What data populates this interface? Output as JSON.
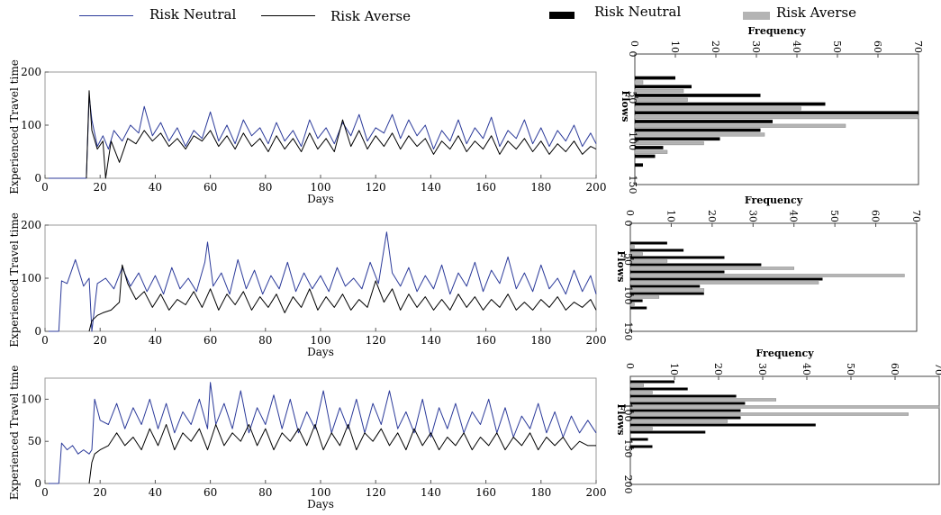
{
  "legend_left": {
    "items": [
      {
        "label": "Risk Neutral",
        "color": "#2b3a9a"
      },
      {
        "label": "Risk Averse",
        "color": "#000000"
      }
    ]
  },
  "legend_right": {
    "items": [
      {
        "label": "Risk Neutral",
        "color": "#000000"
      },
      {
        "label": "Risk Averse",
        "color": "#b4b4b4"
      }
    ]
  },
  "chart_data": [
    {
      "type": "line",
      "panel": "top",
      "xlabel": "Days",
      "ylabel": "Experienced Travel time",
      "xlim": [
        0,
        200
      ],
      "ylim": [
        0,
        200
      ],
      "xticks": [
        0,
        20,
        40,
        60,
        80,
        100,
        120,
        140,
        160,
        180,
        200
      ],
      "yticks": [
        0,
        100,
        200
      ],
      "series": [
        {
          "name": "Risk Neutral",
          "color": "#2b3a9a",
          "x": [
            15,
            16,
            17,
            19,
            21,
            23,
            25,
            28,
            31,
            34,
            36,
            39,
            42,
            45,
            48,
            51,
            54,
            57,
            60,
            63,
            66,
            69,
            72,
            75,
            78,
            81,
            84,
            87,
            90,
            93,
            96,
            99,
            102,
            105,
            108,
            111,
            114,
            117,
            120,
            123,
            126,
            129,
            132,
            135,
            138,
            141,
            144,
            147,
            150,
            153,
            156,
            159,
            162,
            165,
            168,
            171,
            174,
            177,
            180,
            183,
            186,
            189,
            192,
            195,
            198,
            200
          ],
          "y": [
            0,
            155,
            110,
            60,
            80,
            55,
            90,
            70,
            100,
            85,
            135,
            80,
            105,
            70,
            95,
            60,
            90,
            75,
            125,
            70,
            100,
            65,
            110,
            80,
            95,
            65,
            105,
            70,
            90,
            60,
            110,
            75,
            95,
            65,
            105,
            80,
            120,
            70,
            95,
            85,
            120,
            75,
            110,
            80,
            100,
            55,
            90,
            70,
            110,
            65,
            95,
            75,
            115,
            60,
            90,
            75,
            110,
            65,
            95,
            60,
            90,
            70,
            100,
            60,
            85,
            65
          ]
        },
        {
          "name": "Risk Averse",
          "color": "#000000",
          "x": [
            15,
            16,
            17,
            19,
            21,
            22,
            24,
            27,
            30,
            33,
            36,
            39,
            42,
            45,
            48,
            51,
            54,
            57,
            60,
            63,
            66,
            69,
            72,
            75,
            78,
            81,
            84,
            87,
            90,
            93,
            96,
            99,
            102,
            105,
            108,
            111,
            114,
            117,
            120,
            123,
            126,
            129,
            132,
            135,
            138,
            141,
            144,
            147,
            150,
            153,
            156,
            159,
            162,
            165,
            168,
            171,
            174,
            177,
            180,
            183,
            186,
            189,
            192,
            195,
            198,
            200
          ],
          "y": [
            0,
            165,
            90,
            55,
            70,
            0,
            70,
            30,
            75,
            65,
            90,
            70,
            85,
            60,
            75,
            55,
            80,
            70,
            90,
            60,
            80,
            55,
            85,
            60,
            75,
            50,
            80,
            55,
            75,
            50,
            85,
            55,
            75,
            50,
            110,
            60,
            90,
            55,
            80,
            60,
            85,
            55,
            80,
            60,
            75,
            45,
            70,
            55,
            80,
            50,
            70,
            55,
            80,
            45,
            70,
            55,
            75,
            50,
            70,
            45,
            65,
            50,
            70,
            45,
            60,
            55
          ]
        }
      ]
    },
    {
      "type": "bar",
      "orientation": "horizontal",
      "panel": "top",
      "xlabel": "Frequency",
      "ylabel": "Flows",
      "xlim": [
        0,
        70
      ],
      "ylim": [
        0,
        150
      ],
      "xticks": [
        0,
        10,
        20,
        30,
        40,
        50,
        60,
        70
      ],
      "yticks": [
        0,
        50,
        100,
        150
      ],
      "categories": [
        30,
        40,
        50,
        60,
        70,
        80,
        90,
        100,
        110,
        120,
        130
      ],
      "series": [
        {
          "name": "Risk Neutral",
          "color": "#000000",
          "values": [
            10,
            14,
            31,
            47,
            70,
            34,
            31,
            21,
            7,
            5,
            2
          ]
        },
        {
          "name": "Risk Averse",
          "color": "#b4b4b4",
          "values": [
            2,
            12,
            13,
            41,
            70,
            52,
            32,
            17,
            8,
            0,
            0
          ]
        }
      ]
    },
    {
      "type": "line",
      "panel": "middle",
      "xlabel": "Days",
      "ylabel": "Experienced Travel time",
      "xlim": [
        0,
        200
      ],
      "ylim": [
        0,
        200
      ],
      "xticks": [
        0,
        20,
        40,
        60,
        80,
        100,
        120,
        140,
        160,
        180,
        200
      ],
      "yticks": [
        0,
        100,
        200
      ],
      "series": [
        {
          "name": "Risk Neutral",
          "color": "#2b3a9a",
          "x": [
            5,
            6,
            8,
            11,
            14,
            16,
            17,
            19,
            22,
            25,
            28,
            31,
            34,
            37,
            40,
            43,
            46,
            49,
            52,
            55,
            58,
            59,
            61,
            64,
            67,
            70,
            73,
            76,
            79,
            82,
            85,
            88,
            91,
            94,
            97,
            100,
            103,
            106,
            109,
            112,
            115,
            118,
            121,
            124,
            126,
            129,
            132,
            135,
            138,
            141,
            144,
            147,
            150,
            153,
            156,
            159,
            162,
            165,
            168,
            171,
            174,
            177,
            180,
            183,
            186,
            189,
            192,
            195,
            198,
            200
          ],
          "y": [
            0,
            95,
            90,
            135,
            85,
            100,
            0,
            90,
            100,
            80,
            120,
            85,
            110,
            75,
            105,
            70,
            120,
            80,
            100,
            75,
            130,
            168,
            85,
            110,
            70,
            135,
            80,
            115,
            70,
            105,
            80,
            130,
            75,
            110,
            80,
            105,
            75,
            120,
            85,
            100,
            80,
            130,
            90,
            187,
            110,
            85,
            120,
            75,
            105,
            80,
            125,
            70,
            110,
            85,
            130,
            75,
            115,
            90,
            140,
            80,
            110,
            75,
            125,
            80,
            100,
            70,
            115,
            75,
            105,
            70
          ]
        },
        {
          "name": "Risk Averse",
          "color": "#000000",
          "x": [
            16,
            17,
            19,
            21,
            24,
            27,
            28,
            30,
            33,
            36,
            39,
            42,
            45,
            48,
            51,
            54,
            57,
            60,
            63,
            66,
            69,
            72,
            75,
            78,
            81,
            84,
            87,
            90,
            93,
            96,
            99,
            102,
            105,
            108,
            111,
            114,
            117,
            120,
            123,
            126,
            129,
            132,
            135,
            138,
            141,
            144,
            147,
            150,
            153,
            156,
            159,
            162,
            165,
            168,
            171,
            174,
            177,
            180,
            183,
            186,
            189,
            192,
            195,
            198,
            200
          ],
          "y": [
            0,
            20,
            30,
            35,
            40,
            55,
            125,
            90,
            60,
            75,
            45,
            70,
            40,
            60,
            50,
            75,
            45,
            80,
            40,
            70,
            50,
            75,
            40,
            65,
            45,
            70,
            35,
            65,
            45,
            80,
            40,
            65,
            45,
            70,
            40,
            60,
            45,
            95,
            55,
            80,
            40,
            70,
            45,
            65,
            40,
            60,
            40,
            70,
            45,
            65,
            40,
            60,
            45,
            70,
            40,
            55,
            40,
            60,
            45,
            65,
            40,
            55,
            45,
            60,
            40
          ]
        }
      ]
    },
    {
      "type": "bar",
      "orientation": "horizontal",
      "panel": "middle",
      "xlabel": "Frequency",
      "ylabel": "Flows",
      "xlim": [
        0,
        70
      ],
      "ylim": [
        0,
        150
      ],
      "xticks": [
        0,
        10,
        20,
        30,
        40,
        50,
        60,
        70
      ],
      "yticks": [
        0,
        50,
        100,
        150
      ],
      "categories": [
        30,
        40,
        50,
        60,
        70,
        80,
        90,
        100,
        110,
        120,
        130
      ],
      "series": [
        {
          "name": "Risk Neutral",
          "color": "#000000",
          "values": [
            9,
            13,
            23,
            32,
            23,
            47,
            17,
            18,
            3,
            4,
            0
          ]
        },
        {
          "name": "Risk Averse",
          "color": "#b4b4b4",
          "values": [
            1,
            3,
            9,
            40,
            67,
            46,
            18,
            7,
            1,
            0,
            0
          ]
        }
      ]
    },
    {
      "type": "line",
      "panel": "bottom",
      "xlabel": "Days",
      "ylabel": "Experienced Travel time",
      "xlim": [
        0,
        200
      ],
      "ylim": [
        0,
        125
      ],
      "xticks": [
        0,
        20,
        40,
        60,
        80,
        100,
        120,
        140,
        160,
        180,
        200
      ],
      "yticks": [
        0,
        50,
        100
      ],
      "series": [
        {
          "name": "Risk Neutral",
          "color": "#2b3a9a",
          "x": [
            5,
            6,
            8,
            10,
            12,
            14,
            16,
            17,
            18,
            20,
            23,
            26,
            29,
            32,
            35,
            38,
            41,
            44,
            47,
            50,
            53,
            56,
            59,
            60,
            62,
            65,
            68,
            71,
            74,
            77,
            80,
            83,
            86,
            89,
            92,
            95,
            98,
            101,
            104,
            107,
            110,
            113,
            116,
            119,
            122,
            125,
            128,
            131,
            134,
            137,
            140,
            143,
            146,
            149,
            152,
            155,
            158,
            161,
            164,
            167,
            170,
            173,
            176,
            179,
            182,
            185,
            188,
            191,
            194,
            197,
            200
          ],
          "y": [
            0,
            48,
            40,
            45,
            35,
            40,
            35,
            40,
            100,
            75,
            70,
            95,
            65,
            90,
            70,
            100,
            65,
            95,
            60,
            85,
            70,
            100,
            65,
            120,
            70,
            95,
            65,
            110,
            60,
            90,
            70,
            105,
            65,
            100,
            60,
            85,
            65,
            110,
            60,
            90,
            65,
            100,
            60,
            95,
            70,
            110,
            65,
            85,
            60,
            100,
            55,
            90,
            65,
            95,
            60,
            85,
            70,
            100,
            60,
            90,
            55,
            80,
            65,
            95,
            60,
            85,
            55,
            80,
            60,
            75,
            60
          ]
        },
        {
          "name": "Risk Averse",
          "color": "#000000",
          "x": [
            16,
            17,
            18,
            20,
            23,
            26,
            29,
            32,
            35,
            38,
            41,
            44,
            47,
            50,
            53,
            56,
            59,
            62,
            65,
            68,
            71,
            74,
            77,
            80,
            83,
            86,
            89,
            92,
            95,
            98,
            101,
            104,
            107,
            110,
            113,
            116,
            119,
            122,
            125,
            128,
            131,
            134,
            137,
            140,
            143,
            146,
            149,
            152,
            155,
            158,
            161,
            164,
            167,
            170,
            173,
            176,
            179,
            182,
            185,
            188,
            191,
            194,
            197,
            200
          ],
          "y": [
            0,
            25,
            35,
            40,
            45,
            60,
            45,
            55,
            40,
            65,
            45,
            70,
            40,
            60,
            50,
            65,
            40,
            70,
            45,
            60,
            50,
            70,
            45,
            65,
            40,
            60,
            50,
            65,
            45,
            70,
            40,
            60,
            45,
            70,
            40,
            60,
            50,
            65,
            45,
            60,
            40,
            65,
            45,
            60,
            40,
            55,
            45,
            60,
            40,
            55,
            45,
            60,
            40,
            55,
            45,
            60,
            40,
            55,
            45,
            55,
            40,
            50,
            45,
            45
          ]
        }
      ]
    },
    {
      "type": "bar",
      "orientation": "horizontal",
      "panel": "bottom",
      "xlabel": "Frequency",
      "ylabel": "Flows",
      "xlim": [
        0,
        70
      ],
      "ylim": [
        50,
        200
      ],
      "xticks": [
        0,
        10,
        20,
        30,
        40,
        50,
        60,
        70
      ],
      "yticks": [
        100,
        150,
        200
      ],
      "categories": [
        60,
        70,
        80,
        90,
        100,
        110,
        120,
        130,
        140,
        150,
        160
      ],
      "series": [
        {
          "name": "Risk Neutral",
          "color": "#000000",
          "values": [
            10,
            13,
            24,
            26,
            25,
            25,
            42,
            17,
            4,
            5,
            0
          ]
        },
        {
          "name": "Risk Averse",
          "color": "#b4b4b4",
          "values": [
            3,
            5,
            33,
            70,
            63,
            22,
            5,
            0,
            0,
            0,
            0
          ]
        }
      ]
    }
  ]
}
